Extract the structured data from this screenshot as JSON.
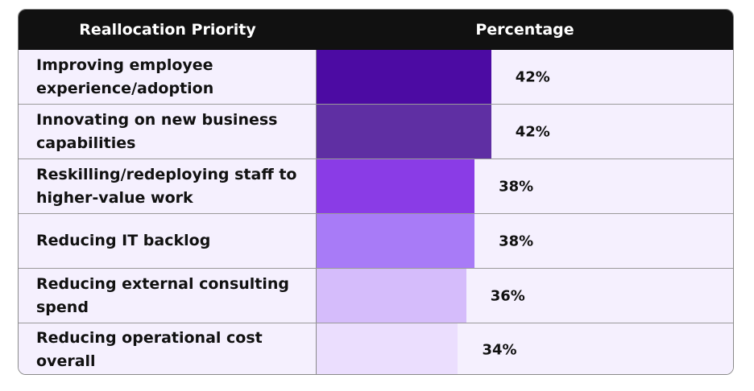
{
  "chart_data": {
    "type": "bar",
    "orientation": "horizontal",
    "title": "",
    "columns": [
      "Reallocation Priority",
      "Percentage"
    ],
    "categories": [
      "Improving employee experience/adoption",
      "Innovating on new business capabilities",
      "Reskilling/redeploying staff to higher-value work",
      "Reducing IT backlog",
      "Reducing external consulting spend",
      "Reducing operational cost overall"
    ],
    "values": [
      42,
      42,
      38,
      38,
      36,
      34
    ],
    "value_labels": [
      "42%",
      "42%",
      "38%",
      "38%",
      "36%",
      "34%"
    ],
    "xlim": [
      0,
      100
    ],
    "bar_colors": [
      "#4c0ba3",
      "#5f2fa3",
      "#8a3ce6",
      "#a87bf7",
      "#d5bcfb",
      "#ebdefe"
    ],
    "cell_background": "#f5f0fe",
    "header_background": "#111111"
  }
}
